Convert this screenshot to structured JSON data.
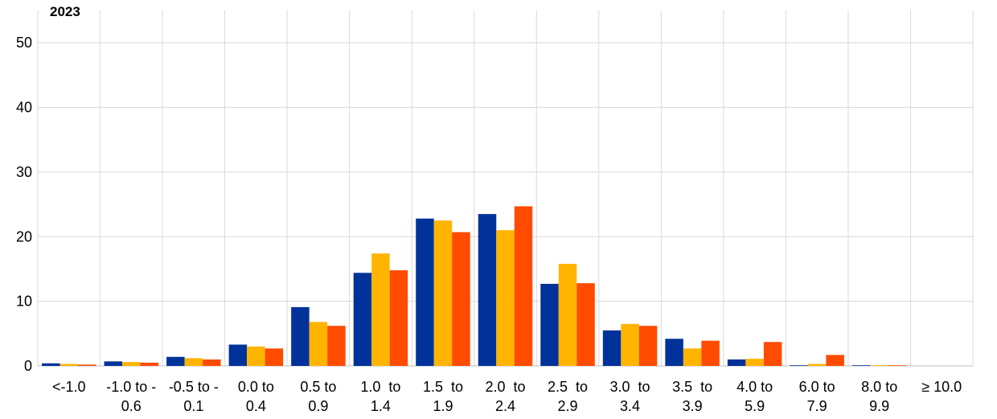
{
  "chart_data": {
    "type": "bar",
    "title": "2023",
    "xlabel": "",
    "ylabel": "",
    "ylim": [
      0,
      55
    ],
    "yticks": [
      0,
      10,
      20,
      30,
      40,
      50
    ],
    "grid": true,
    "legend": "none",
    "categories": [
      [
        "<-1.0"
      ],
      [
        "-1.0 to -",
        "0.6"
      ],
      [
        "-0.5 to -",
        "0.1"
      ],
      [
        "0.0 to",
        "0.4"
      ],
      [
        "0.5 to",
        "0.9"
      ],
      [
        "1.0  to",
        "1.4"
      ],
      [
        "1.5  to",
        "1.9"
      ],
      [
        "2.0  to",
        "2.4"
      ],
      [
        "2.5  to",
        "2.9"
      ],
      [
        "3.0  to",
        "3.4"
      ],
      [
        "3.5  to",
        "3.9"
      ],
      [
        "4.0 to",
        "5.9"
      ],
      [
        "6.0 to",
        "7.9"
      ],
      [
        "8.0 to",
        "9.9"
      ],
      [
        "≥ 10.0"
      ]
    ],
    "series": [
      {
        "color": "#003299",
        "values": [
          0.4,
          0.7,
          1.4,
          3.3,
          9.1,
          14.4,
          22.8,
          23.5,
          12.7,
          5.5,
          4.2,
          1.0,
          0.1,
          0.1,
          0.0
        ]
      },
      {
        "color": "#FFB400",
        "values": [
          0.3,
          0.6,
          1.2,
          3.0,
          6.8,
          17.4,
          22.5,
          21.0,
          15.8,
          6.5,
          2.7,
          1.1,
          0.3,
          0.1,
          0.0
        ]
      },
      {
        "color": "#FF4B00",
        "values": [
          0.2,
          0.5,
          1.0,
          2.7,
          6.2,
          14.8,
          20.7,
          24.7,
          12.8,
          6.2,
          3.9,
          3.7,
          1.7,
          0.1,
          0.0
        ]
      }
    ]
  }
}
